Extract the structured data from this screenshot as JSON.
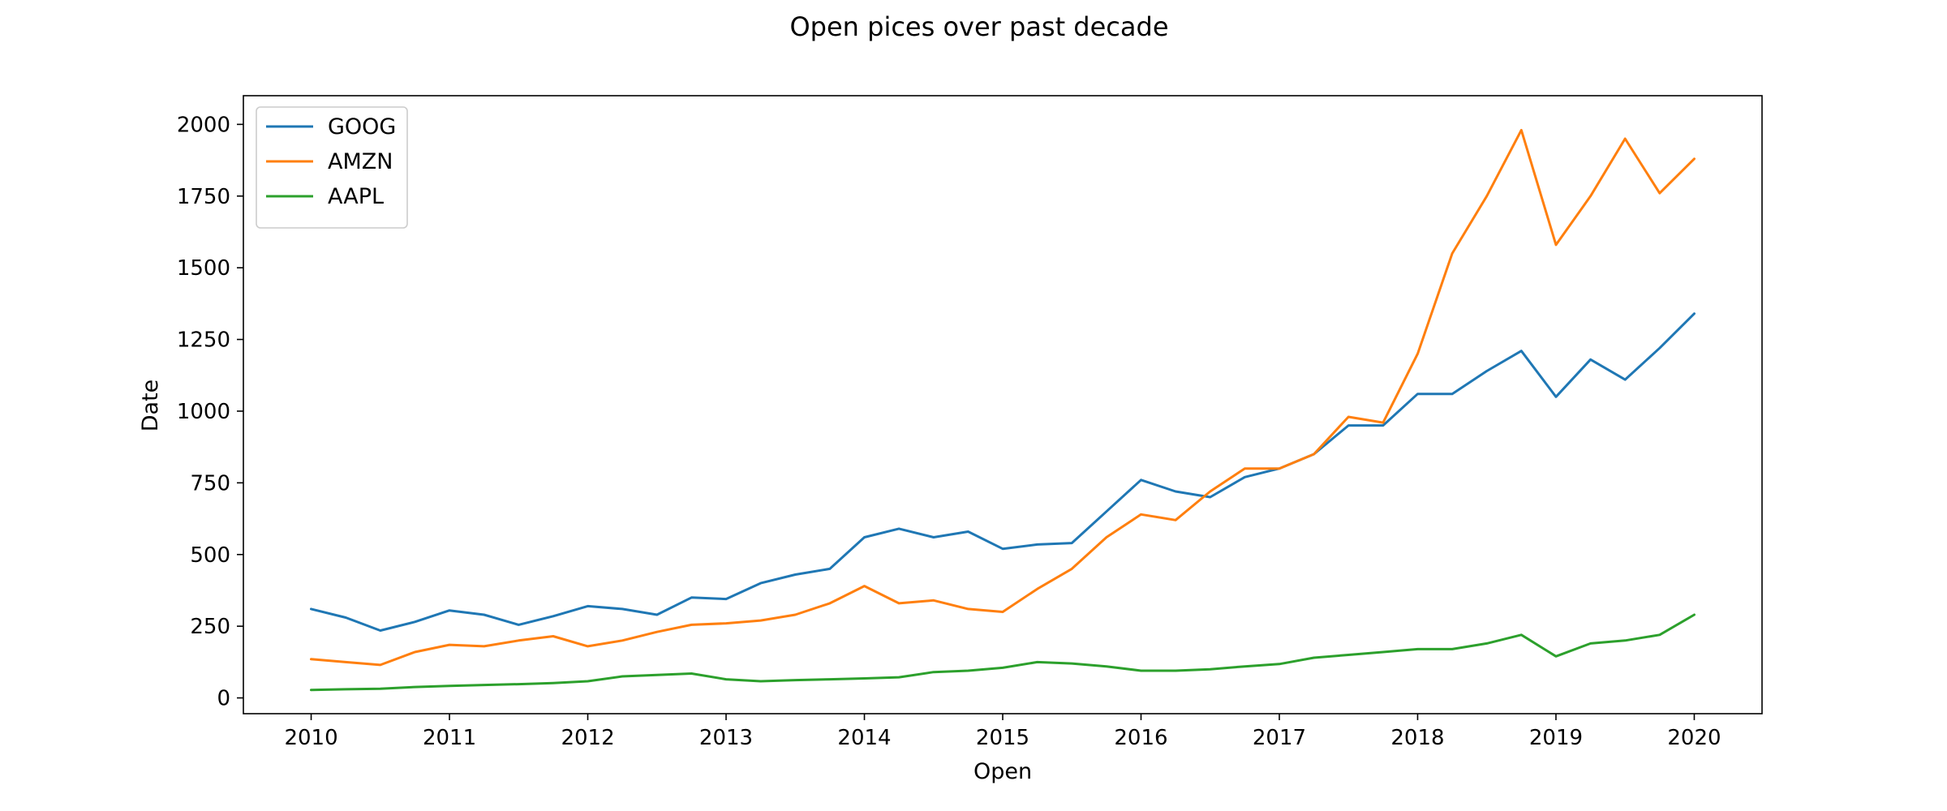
{
  "chart_data": {
    "type": "line",
    "title": "Open pices over past decade",
    "xlabel": "Open",
    "ylabel": "Date",
    "xlim": [
      2009.51,
      2020.49
    ],
    "ylim": [
      -55,
      2100
    ],
    "x_ticks": [
      2010,
      2011,
      2012,
      2013,
      2014,
      2015,
      2016,
      2017,
      2018,
      2019,
      2020
    ],
    "y_ticks": [
      0,
      250,
      500,
      750,
      1000,
      1250,
      1500,
      1750,
      2000
    ],
    "grid": false,
    "legend_position": "top-left",
    "x": [
      2010.0,
      2010.25,
      2010.5,
      2010.75,
      2011.0,
      2011.25,
      2011.5,
      2011.75,
      2012.0,
      2012.25,
      2012.5,
      2012.75,
      2013.0,
      2013.25,
      2013.5,
      2013.75,
      2014.0,
      2014.25,
      2014.5,
      2014.75,
      2015.0,
      2015.25,
      2015.5,
      2015.75,
      2016.0,
      2016.25,
      2016.5,
      2016.75,
      2017.0,
      2017.25,
      2017.5,
      2017.75,
      2018.0,
      2018.25,
      2018.5,
      2018.75,
      2019.0,
      2019.25,
      2019.5,
      2019.75,
      2020.0
    ],
    "series": [
      {
        "name": "GOOG",
        "color": "#1f77b4",
        "values": [
          310,
          280,
          235,
          265,
          305,
          290,
          255,
          285,
          320,
          310,
          290,
          350,
          345,
          400,
          430,
          450,
          560,
          590,
          560,
          580,
          520,
          535,
          540,
          650,
          760,
          720,
          700,
          770,
          800,
          850,
          950,
          950,
          1060,
          1060,
          1140,
          1210,
          1050,
          1180,
          1110,
          1220,
          1340
        ]
      },
      {
        "name": "AMZN",
        "color": "#ff7f0e",
        "values": [
          135,
          125,
          115,
          160,
          185,
          180,
          200,
          215,
          180,
          200,
          230,
          255,
          260,
          270,
          290,
          330,
          390,
          330,
          340,
          310,
          300,
          380,
          450,
          560,
          640,
          620,
          720,
          800,
          800,
          850,
          980,
          960,
          1200,
          1550,
          1750,
          1980,
          1580,
          1750,
          1950,
          1760,
          1880
        ]
      },
      {
        "name": "AAPL",
        "color": "#2ca02c",
        "values": [
          28,
          30,
          32,
          38,
          42,
          45,
          48,
          52,
          58,
          75,
          80,
          85,
          65,
          58,
          62,
          65,
          68,
          72,
          90,
          95,
          105,
          125,
          120,
          110,
          95,
          95,
          100,
          110,
          118,
          140,
          150,
          160,
          170,
          170,
          190,
          220,
          145,
          190,
          200,
          220,
          290
        ]
      }
    ]
  }
}
